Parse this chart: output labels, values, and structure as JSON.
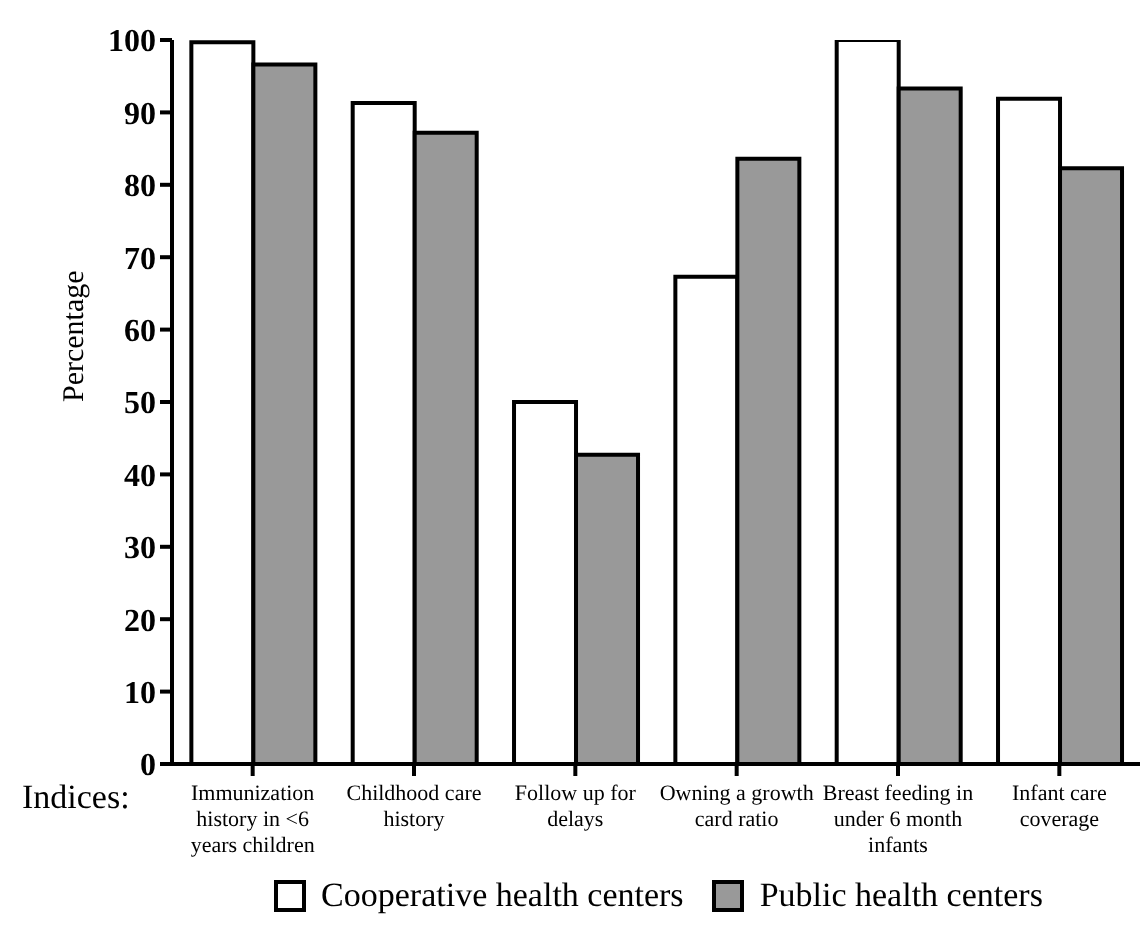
{
  "chart_data": {
    "type": "bar",
    "xlabel": "Indices:",
    "ylabel": "Percentage",
    "categories": [
      "Immunization history in <6 years children",
      "Childhood care history",
      "Follow up for delays",
      "Owning a growth card ratio",
      "Breast feeding in under 6 month infants",
      "Infant care coverage"
    ],
    "series": [
      {
        "name": "Cooperative health centers",
        "color": "#ffffff",
        "values": [
          99.7,
          91.3,
          50,
          67.3,
          100,
          91.9
        ]
      },
      {
        "name": "Public health centers",
        "color": "#999999",
        "values": [
          96.6,
          87.2,
          42.7,
          83.6,
          93.3,
          82.3
        ]
      }
    ],
    "ylim": [
      0,
      100
    ],
    "yticks": [
      0,
      10,
      20,
      30,
      40,
      50,
      60,
      70,
      80,
      90,
      100
    ],
    "grid": false,
    "legend": "bottom"
  }
}
